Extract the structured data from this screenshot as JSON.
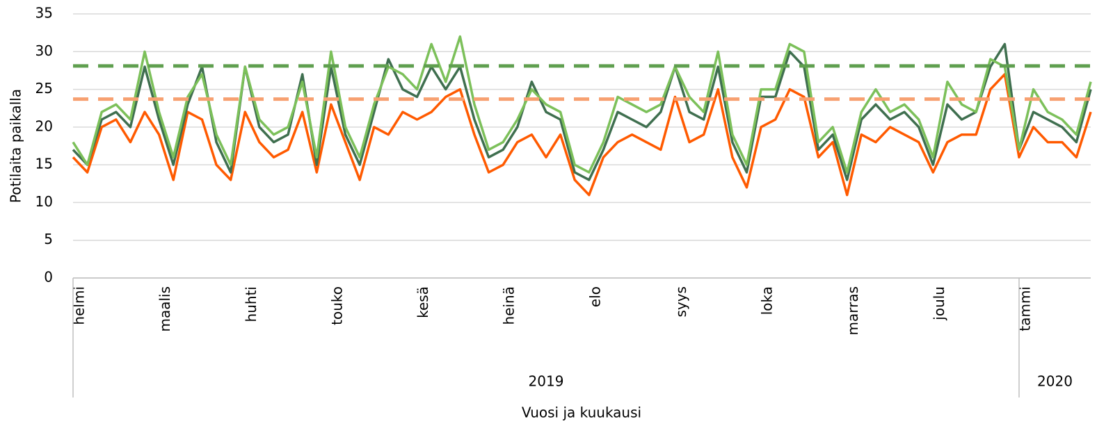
{
  "chart_data": {
    "type": "line",
    "y_label": "Potilaita paikalla",
    "x_label": "Vuosi ja kuukausi",
    "categories": [
      "helmi",
      null,
      null,
      null,
      null,
      null,
      "maalis",
      null,
      null,
      null,
      null,
      null,
      "huhti",
      null,
      null,
      null,
      null,
      null,
      "touko",
      null,
      null,
      null,
      null,
      null,
      "kesä",
      null,
      null,
      null,
      null,
      null,
      "heinä",
      null,
      null,
      null,
      null,
      null,
      "elo",
      null,
      null,
      null,
      null,
      null,
      "syys",
      null,
      null,
      null,
      null,
      null,
      "loka",
      null,
      null,
      null,
      null,
      null,
      "marras",
      null,
      null,
      null,
      null,
      null,
      "joulu",
      null,
      null,
      null,
      null,
      null,
      "tammi",
      null,
      null,
      null,
      null,
      null
    ],
    "year_groups": [
      {
        "label": "2019",
        "size": 66
      },
      {
        "label": "2020",
        "size": 6
      }
    ],
    "series": [
      {
        "color": "#ff5a00",
        "values": [
          16,
          14,
          20,
          21,
          18,
          22,
          19,
          13,
          22,
          21,
          15,
          13,
          22,
          18,
          16,
          17,
          22,
          14,
          23,
          18,
          13,
          20,
          19,
          22,
          21,
          22,
          24,
          25,
          19,
          14,
          15,
          18,
          19,
          16,
          19,
          13,
          11,
          16,
          18,
          19,
          18,
          17,
          24,
          18,
          19,
          25,
          16,
          12,
          20,
          21,
          25,
          24,
          16,
          18,
          11,
          19,
          18,
          20,
          19,
          18,
          14,
          18,
          19,
          19,
          25,
          27,
          16,
          20,
          18,
          18,
          16,
          22
        ]
      },
      {
        "color": "#3f6f4f",
        "values": [
          17,
          15,
          21,
          22,
          20,
          28,
          21,
          15,
          23,
          28,
          18,
          14,
          28,
          20,
          18,
          19,
          27,
          15,
          28,
          19,
          15,
          22,
          29,
          25,
          24,
          28,
          25,
          28,
          21,
          16,
          17,
          20,
          26,
          22,
          21,
          14,
          13,
          17,
          22,
          21,
          20,
          22,
          28,
          22,
          21,
          28,
          18,
          14,
          24,
          24,
          30,
          28,
          17,
          19,
          13,
          21,
          23,
          21,
          22,
          20,
          15,
          23,
          21,
          22,
          28,
          31,
          17,
          22,
          21,
          20,
          18,
          25
        ]
      },
      {
        "color": "#7cc05a",
        "values": [
          18,
          15,
          22,
          23,
          21,
          30,
          22,
          16,
          24,
          27,
          19,
          15,
          28,
          21,
          19,
          20,
          26,
          16,
          30,
          20,
          16,
          23,
          28,
          27,
          25,
          31,
          26,
          32,
          23,
          17,
          18,
          21,
          25,
          23,
          22,
          15,
          14,
          18,
          24,
          23,
          22,
          23,
          28,
          24,
          22,
          30,
          19,
          15,
          25,
          25,
          31,
          30,
          18,
          20,
          14,
          22,
          25,
          22,
          23,
          21,
          16,
          26,
          23,
          22,
          29,
          28,
          17,
          25,
          22,
          21,
          19,
          26
        ]
      }
    ],
    "reference_lines": [
      {
        "value": 28.1,
        "color": "#5f9f4f"
      },
      {
        "value": 23.7,
        "color": "#f7a070"
      }
    ],
    "ylim": [
      0,
      35
    ],
    "yticks": [
      0,
      5,
      10,
      15,
      20,
      25,
      30,
      35
    ],
    "grid": true
  }
}
